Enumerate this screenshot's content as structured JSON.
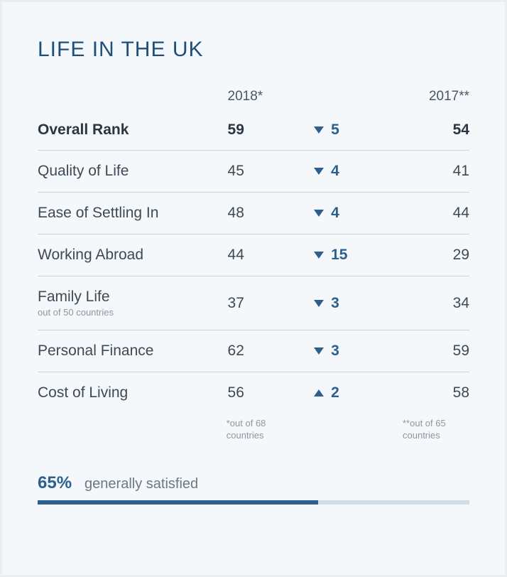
{
  "title": "LIFE IN THE UK",
  "columns": {
    "year_current": "2018*",
    "year_prev": "2017**"
  },
  "rows": [
    {
      "label": "Overall Rank",
      "sublabel": "",
      "v2018": "59",
      "direction": "down",
      "delta": "5",
      "v2017": "54",
      "overall": true
    },
    {
      "label": "Quality of Life",
      "sublabel": "",
      "v2018": "45",
      "direction": "down",
      "delta": "4",
      "v2017": "41",
      "overall": false
    },
    {
      "label": "Ease of Settling In",
      "sublabel": "",
      "v2018": "48",
      "direction": "down",
      "delta": "4",
      "v2017": "44",
      "overall": false
    },
    {
      "label": "Working Abroad",
      "sublabel": "",
      "v2018": "44",
      "direction": "down",
      "delta": "15",
      "v2017": "29",
      "overall": false
    },
    {
      "label": "Family Life",
      "sublabel": "out of 50 countries",
      "v2018": "37",
      "direction": "down",
      "delta": "3",
      "v2017": "34",
      "overall": false
    },
    {
      "label": "Personal Finance",
      "sublabel": "",
      "v2018": "62",
      "direction": "down",
      "delta": "3",
      "v2017": "59",
      "overall": false
    },
    {
      "label": "Cost of Living",
      "sublabel": "",
      "v2018": "56",
      "direction": "up",
      "delta": "2",
      "v2017": "58",
      "overall": false
    }
  ],
  "footnotes": {
    "f1": "*out of 68 countries",
    "f2": "**out of 65 countries"
  },
  "satisfaction": {
    "pct_label": "65%",
    "pct_value": 65,
    "label": "generally satisfied"
  },
  "colors": {
    "accent": "#2c5f8d",
    "title": "#1f4e79",
    "text": "#3d4a56",
    "muted": "#8a97a3",
    "divider": "#c9d4dc",
    "bar_track": "#d4dde4",
    "background": "#f5f8fa"
  },
  "chart_type": "table"
}
